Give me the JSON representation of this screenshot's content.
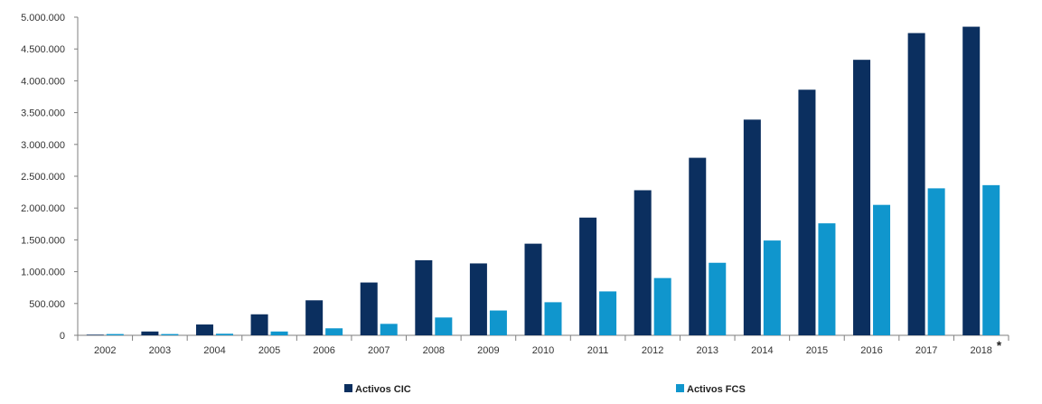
{
  "chart_data": {
    "type": "bar",
    "title": "",
    "xlabel": "",
    "ylabel": "",
    "categories": [
      "2002",
      "2003",
      "2004",
      "2005",
      "2006",
      "2007",
      "2008",
      "2009",
      "2010",
      "2011",
      "2012",
      "2013",
      "2014",
      "2015",
      "2016",
      "2017",
      "2018"
    ],
    "category_note": "*",
    "series": [
      {
        "name": "Activos CIC",
        "color": "#0b2f5f",
        "values": [
          10000,
          60000,
          170000,
          330000,
          550000,
          830000,
          1180000,
          1130000,
          1440000,
          1850000,
          2280000,
          2790000,
          3390000,
          3860000,
          4330000,
          4750000,
          4850000
        ]
      },
      {
        "name": "Activos FCS",
        "color": "#1096cd",
        "values": [
          20000,
          20000,
          25000,
          60000,
          110000,
          180000,
          280000,
          390000,
          520000,
          690000,
          900000,
          1140000,
          1490000,
          1760000,
          2050000,
          2310000,
          2360000
        ]
      }
    ],
    "ylim": [
      0,
      5000000
    ],
    "yticks": [
      0,
      500000,
      1000000,
      1500000,
      2000000,
      2500000,
      3000000,
      3500000,
      4000000,
      4500000,
      5000000
    ],
    "ytick_labels": [
      "0",
      "500.000",
      "1.000.000",
      "1.500.000",
      "2.000.000",
      "2.500.000",
      "3.000.000",
      "3.500.000",
      "4.000.000",
      "4.500.000",
      "5.000.000"
    ],
    "grid": false,
    "legend_position": "bottom"
  }
}
